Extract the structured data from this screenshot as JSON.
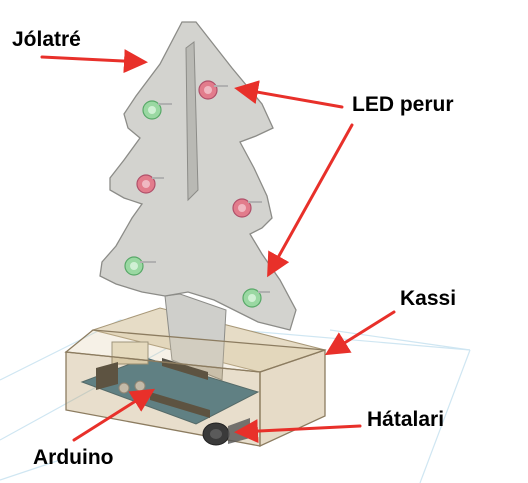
{
  "labels": {
    "tree": "Jólatré",
    "leds": "LED perur",
    "box": "Kassi",
    "speaker": "Hátalari",
    "arduino": "Arduino"
  },
  "colors": {
    "annotation_arrow": "#e8302a",
    "tree_fill": "#d3d3cf",
    "box_fill": "#d8c8a8",
    "board": "#2f6f8f",
    "led_red": "#e27c8c",
    "led_green": "#9ad8a2"
  }
}
